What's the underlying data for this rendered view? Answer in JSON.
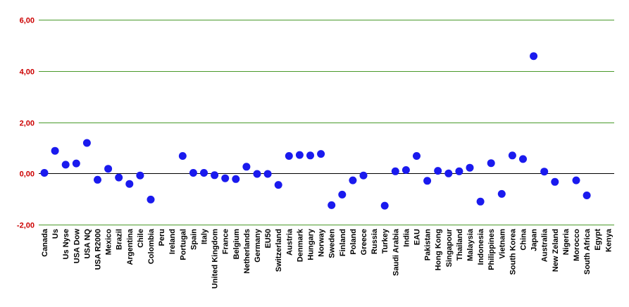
{
  "chart_data": {
    "type": "scatter",
    "title": "",
    "xlabel": "",
    "ylabel": "",
    "ylim": [
      -2,
      6
    ],
    "yticks": [
      "-2,00",
      "0,00",
      "2,00",
      "4,00",
      "6,00"
    ],
    "ytick_values": [
      -2,
      0,
      2,
      4,
      6
    ],
    "grid": true,
    "legend": "none",
    "colors": {
      "marker": "#1a1aee",
      "grid": "#4a9a2a",
      "zero_line": "#000000",
      "ytick_text": "#cc0000"
    },
    "categories": [
      "Canada",
      "Us",
      "Us Nyse",
      "USA Dow",
      "USA NQ",
      "USA R2000",
      "Mexico",
      "Brazil",
      "Argentina",
      "Chile",
      "Colombia",
      "Peru",
      "Ireland",
      "Portugal",
      "Spain",
      "Italy",
      "United Kingdom",
      "France",
      "Belgium",
      "Netherlands",
      "Germany",
      "EU50",
      "Switzerland",
      "Austria",
      "Denmark",
      "Hungary",
      "Norway",
      "Sweden",
      "Finland",
      "Poland",
      "Greece",
      "Russia",
      "Turkey",
      "Saudi Arabia",
      "India",
      "EAU",
      "Pakistan",
      "Hong Kong",
      "Singapour",
      "Thailand",
      "Malaysia",
      "Indonesia",
      "Philippines",
      "Vietnam",
      "South Korea",
      "China",
      "Japan",
      "Australia",
      "New Zeland",
      "Nigeria",
      "Morocco",
      "South Africa",
      "Egypt",
      "Kenya"
    ],
    "values": [
      0.02,
      0.88,
      0.34,
      0.39,
      1.19,
      -0.25,
      0.18,
      -0.16,
      -0.41,
      -0.08,
      -1.02,
      null,
      null,
      0.68,
      0.02,
      0.02,
      -0.07,
      -0.19,
      -0.22,
      0.26,
      -0.02,
      -0.02,
      -0.45,
      0.68,
      0.72,
      0.7,
      0.76,
      -1.24,
      -0.83,
      -0.27,
      -0.08,
      null,
      -1.26,
      0.08,
      0.13,
      0.68,
      -0.29,
      0.1,
      0.0,
      0.08,
      0.22,
      -1.1,
      0.4,
      -0.8,
      0.7,
      0.56,
      4.58,
      0.07,
      -0.33,
      null,
      -0.27,
      -0.86,
      null,
      null
    ]
  }
}
